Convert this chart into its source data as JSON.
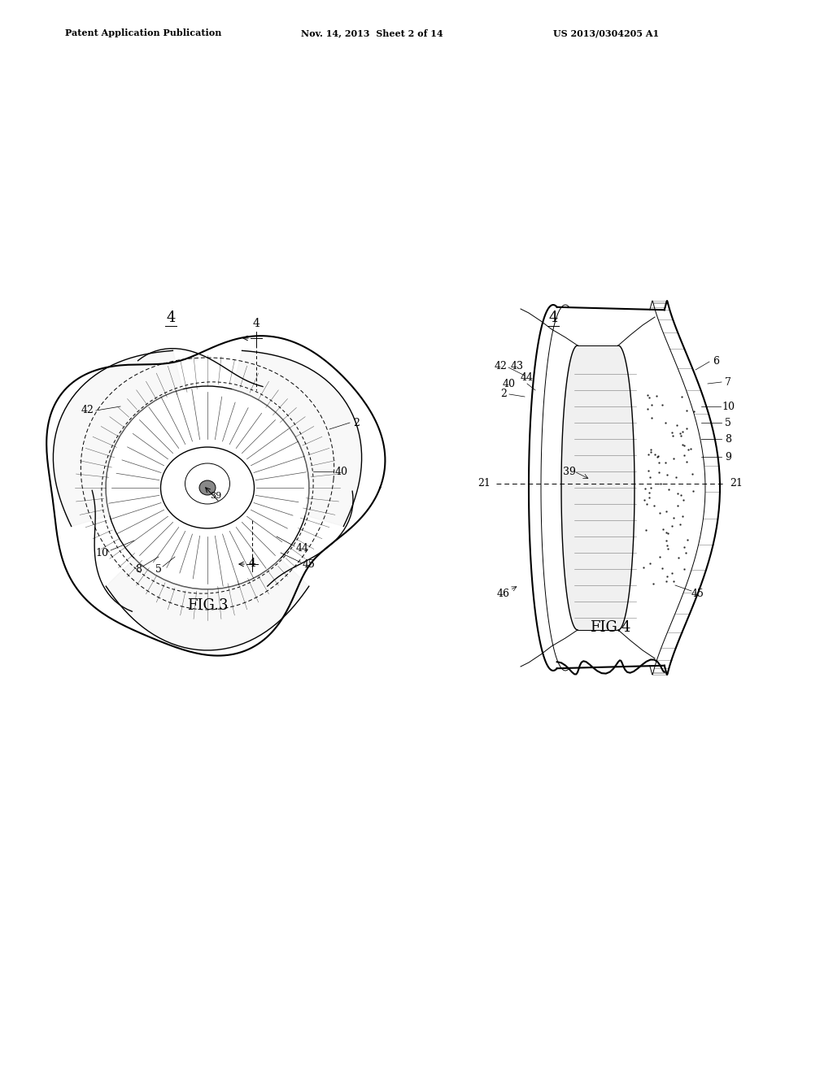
{
  "bg_color": "#ffffff",
  "line_color": "#000000",
  "header_left": "Patent Application Publication",
  "header_mid": "Nov. 14, 2013  Sheet 2 of 14",
  "header_right": "US 2013/0304205 A1",
  "fig3_label": "FIG.3",
  "fig4_label": "FIG.4",
  "fig3_title": "4",
  "fig4_title": "4"
}
